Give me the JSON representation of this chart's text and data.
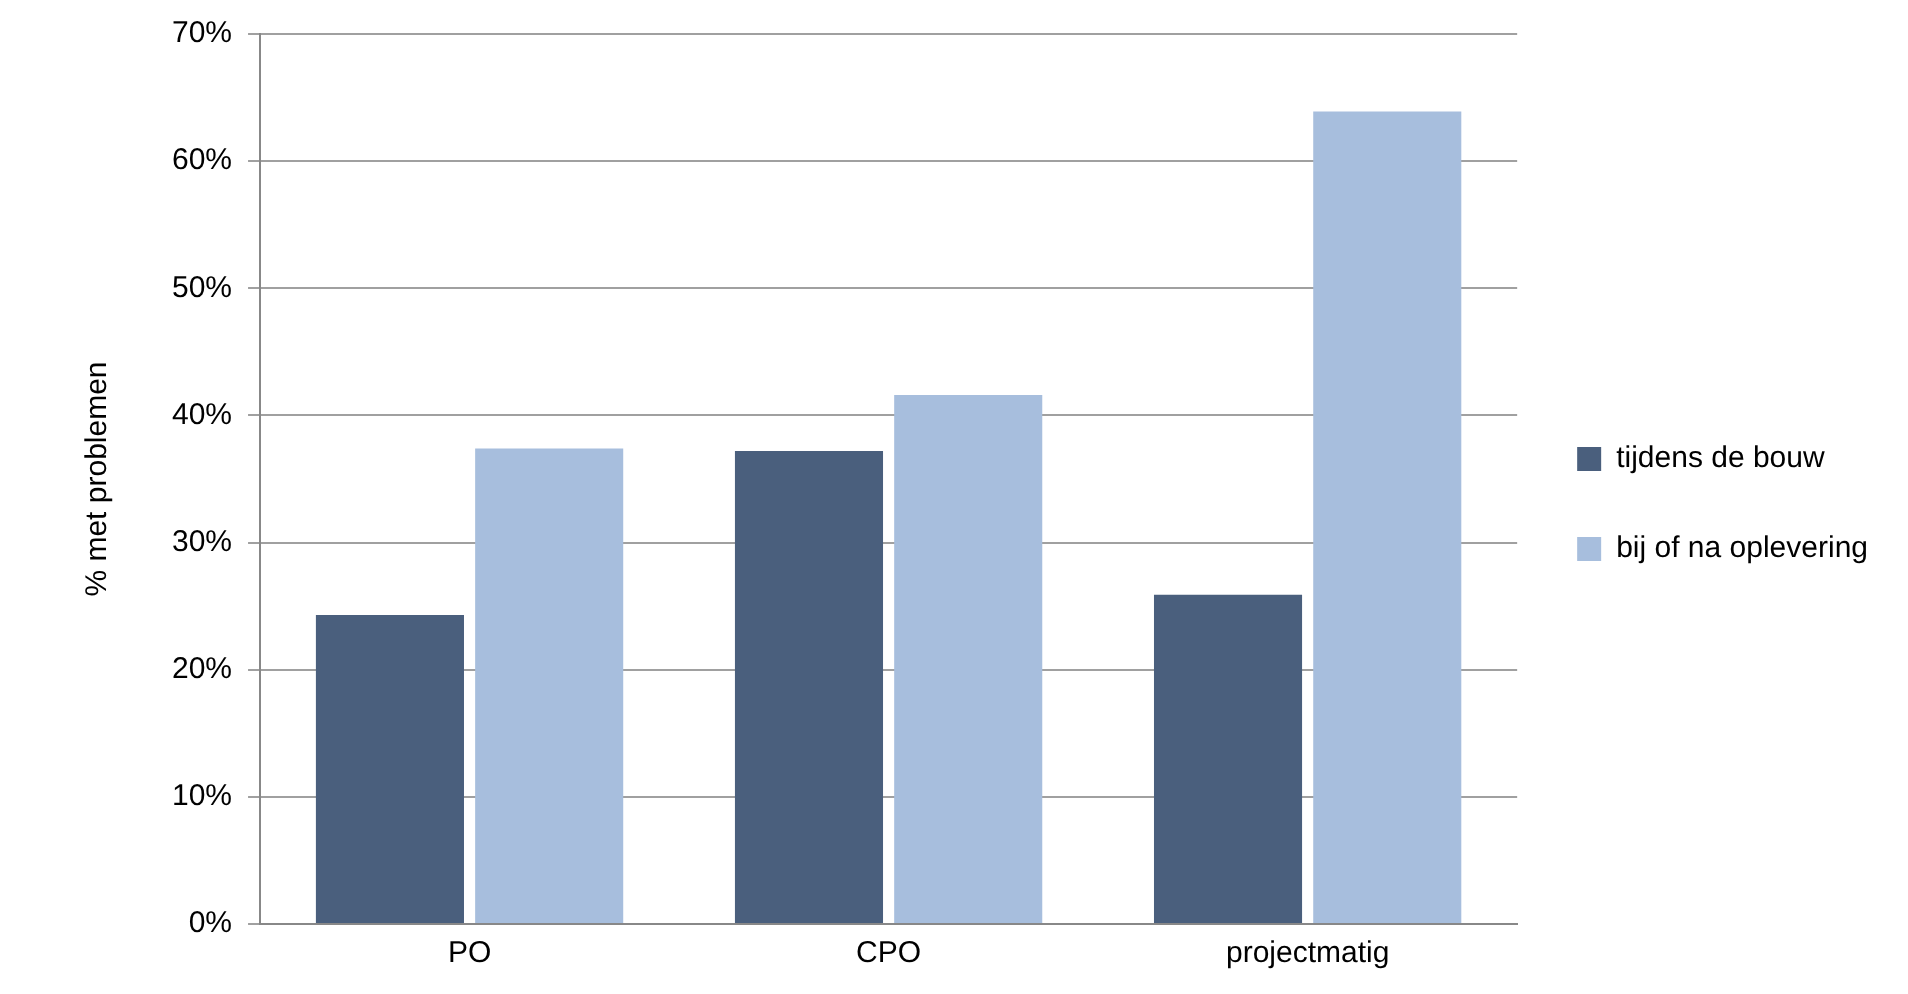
{
  "chart_data": {
    "type": "bar",
    "ylabel": "% met problemen",
    "categories": [
      "PO",
      "CPO",
      "projectmatig"
    ],
    "series": [
      {
        "name": "tijdens de bouw",
        "color": "#4a5f7d",
        "values": [
          24.3,
          37.2,
          25.9
        ]
      },
      {
        "name": "bij of na oplevering",
        "color": "#a7bedd",
        "values": [
          37.4,
          41.6,
          63.9
        ]
      }
    ],
    "ylim": [
      0,
      70
    ],
    "yticks": [
      {
        "value": 0,
        "label": "0%"
      },
      {
        "value": 10,
        "label": "10%"
      },
      {
        "value": 20,
        "label": "20%"
      },
      {
        "value": 30,
        "label": "30%"
      },
      {
        "value": 40,
        "label": "40%"
      },
      {
        "value": 50,
        "label": "50%"
      },
      {
        "value": 60,
        "label": "60%"
      },
      {
        "value": 70,
        "label": "70%"
      }
    ],
    "grid": "y",
    "legend": "right"
  }
}
